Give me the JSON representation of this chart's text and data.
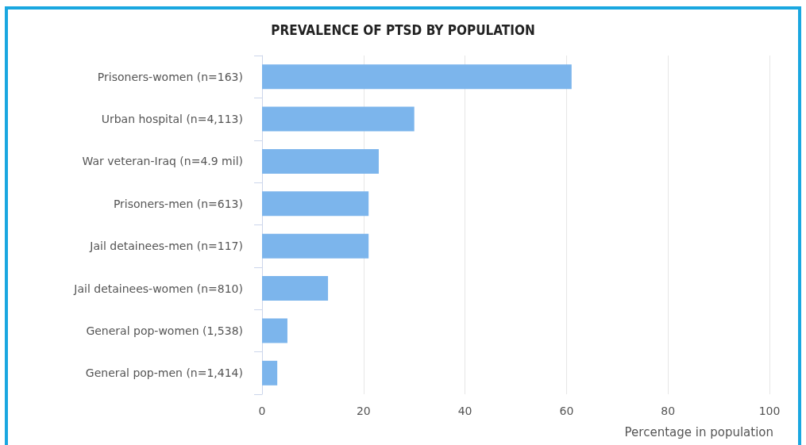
{
  "chart_data": {
    "type": "bar",
    "orientation": "horizontal",
    "title": "PREVALENCE OF PTSD BY POPULATION",
    "xlabel": "Percentage in population",
    "categories": [
      "Prisoners-women (n=163)",
      "Urban hospital (n=4,113)",
      "War veteran-Iraq (n=4.9 mil)",
      "Prisoners-men (n=613)",
      "Jail detainees-men (n=117)",
      "Jail detainees-women (n=810)",
      "General pop-women (1,538)",
      "General pop-men (n=1,414)"
    ],
    "values": [
      61,
      30,
      23,
      21,
      21,
      13,
      5,
      3
    ],
    "color": "#7cb5ec",
    "xlim": [
      0,
      100
    ],
    "xticks": [
      0,
      20,
      40,
      60,
      80,
      100
    ],
    "grid": "x"
  }
}
